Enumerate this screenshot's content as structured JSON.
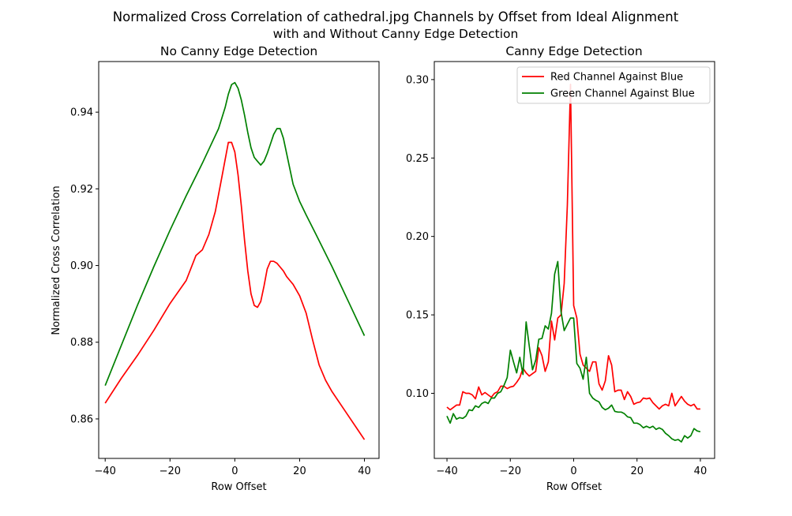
{
  "figure": {
    "title_line1": "Normalized Cross Correlation of cathedral.jpg Channels by Offset from Ideal Alignment",
    "title_line2": "with and Without Canny Edge Detection"
  },
  "colors": {
    "red": "#ff0000",
    "green": "#008000"
  },
  "chart_data": [
    {
      "type": "line",
      "title": "No Canny Edge Detection",
      "xlabel": "Row Offset",
      "ylabel": "Normalized Cross Correlation",
      "xlim": [
        -42,
        44.5
      ],
      "ylim": [
        0.8497,
        0.9532
      ],
      "xticks": [
        -40,
        -20,
        0,
        20,
        40
      ],
      "xtick_labels": [
        "−40",
        "−20",
        "0",
        "20",
        "40"
      ],
      "yticks": [
        0.86,
        0.88,
        0.9,
        0.92,
        0.94
      ],
      "ytick_labels": [
        "0.86",
        "0.88",
        "0.90",
        "0.92",
        "0.94"
      ],
      "legend": null,
      "series": [
        {
          "color": "#ff0000",
          "x": [
            -40,
            -35,
            -30,
            -25,
            -20,
            -15,
            -12,
            -10,
            -8,
            -6,
            -4,
            -2,
            -1,
            0,
            1,
            2,
            3,
            4,
            5,
            6,
            7,
            8,
            9,
            10,
            11,
            12,
            13,
            14,
            15,
            16,
            17,
            18,
            20,
            22,
            24,
            26,
            28,
            30,
            34,
            38,
            40
          ],
          "y": [
            0.8641,
            0.8706,
            0.8766,
            0.8831,
            0.8901,
            0.8961,
            0.9026,
            0.9041,
            0.9081,
            0.9141,
            0.9231,
            0.9321,
            0.9321,
            0.9296,
            0.9236,
            0.9156,
            0.9066,
            0.8986,
            0.8926,
            0.8896,
            0.8891,
            0.8906,
            0.8946,
            0.8991,
            0.9011,
            0.9011,
            0.9006,
            0.8996,
            0.8986,
            0.8971,
            0.8961,
            0.8951,
            0.8921,
            0.8876,
            0.8806,
            0.8741,
            0.8701,
            0.8671,
            0.8621,
            0.8571,
            0.8546
          ]
        },
        {
          "color": "#008000",
          "x": [
            -40,
            -35,
            -30,
            -25,
            -20,
            -15,
            -10,
            -5,
            -3,
            -2,
            -1,
            0,
            1,
            2,
            3,
            4,
            5,
            6,
            7,
            8,
            9,
            10,
            11,
            12,
            13,
            14,
            15,
            16,
            17,
            18,
            20,
            22,
            25,
            30,
            35,
            40
          ],
          "y": [
            0.8687,
            0.8792,
            0.8897,
            0.8997,
            0.9092,
            0.9182,
            0.9267,
            0.9357,
            0.9412,
            0.9447,
            0.9472,
            0.9477,
            0.9462,
            0.9432,
            0.9392,
            0.9347,
            0.9307,
            0.9282,
            0.9272,
            0.9262,
            0.9272,
            0.9292,
            0.9317,
            0.9342,
            0.9357,
            0.9357,
            0.9332,
            0.9292,
            0.9252,
            0.9212,
            0.9167,
            0.9132,
            0.9082,
            0.8997,
            0.8907,
            0.8817
          ]
        }
      ]
    },
    {
      "type": "line",
      "title": "Canny Edge Detection",
      "xlabel": "Row Offset",
      "ylabel": "",
      "xlim": [
        -44,
        44.5
      ],
      "ylim": [
        0.0585,
        0.3115
      ],
      "xticks": [
        -40,
        -20,
        0,
        20,
        40
      ],
      "xtick_labels": [
        "−40",
        "−20",
        "0",
        "20",
        "40"
      ],
      "yticks": [
        0.1,
        0.15,
        0.2,
        0.25,
        0.3
      ],
      "ytick_labels": [
        "0.10",
        "0.15",
        "0.20",
        "0.25",
        "0.30"
      ],
      "legend": {
        "position": "top-right"
      },
      "series": [
        {
          "name": "Red Channel Against Blue",
          "color": "#ff0000",
          "x": [
            -40,
            -39,
            -38,
            -37,
            -36,
            -35,
            -34,
            -33,
            -32,
            -31,
            -30,
            -29,
            -28,
            -27,
            -26,
            -25,
            -24,
            -23,
            -22,
            -21,
            -20,
            -19,
            -18,
            -17,
            -16,
            -15,
            -14,
            -13,
            -12,
            -11,
            -10,
            -9,
            -8,
            -7,
            -6,
            -5,
            -4,
            -3,
            -2,
            -1,
            0,
            1,
            2,
            3,
            4,
            5,
            6,
            7,
            8,
            9,
            10,
            11,
            12,
            13,
            14,
            15,
            16,
            17,
            18,
            19,
            20,
            21,
            22,
            23,
            24,
            25,
            26,
            27,
            28,
            29,
            30,
            31,
            32,
            33,
            34,
            35,
            36,
            37,
            38,
            39,
            40
          ],
          "y": [
            0.0912,
            0.0895,
            0.091,
            0.0925,
            0.0925,
            0.101,
            0.1,
            0.1,
            0.099,
            0.0965,
            0.104,
            0.099,
            0.1005,
            0.099,
            0.0975,
            0.1,
            0.101,
            0.1045,
            0.1045,
            0.103,
            0.104,
            0.1045,
            0.107,
            0.11,
            0.116,
            0.113,
            0.111,
            0.1125,
            0.114,
            0.129,
            0.124,
            0.114,
            0.12,
            0.146,
            0.134,
            0.148,
            0.15,
            0.17,
            0.22,
            0.297,
            0.156,
            0.148,
            0.125,
            0.118,
            0.116,
            0.114,
            0.12,
            0.12,
            0.106,
            0.102,
            0.108,
            0.124,
            0.118,
            0.101,
            0.102,
            0.102,
            0.096,
            0.101,
            0.098,
            0.093,
            0.094,
            0.0945,
            0.097,
            0.0965,
            0.097,
            0.094,
            0.092,
            0.09,
            0.092,
            0.093,
            0.092,
            0.1,
            0.092,
            0.095,
            0.098,
            0.095,
            0.093,
            0.092,
            0.093,
            0.09,
            0.09
          ]
        },
        {
          "name": "Green Channel Against Blue",
          "color": "#008000",
          "x": [
            -40,
            -39,
            -38,
            -37,
            -36,
            -35,
            -34,
            -33,
            -32,
            -31,
            -30,
            -29,
            -28,
            -27,
            -26,
            -25,
            -24,
            -23,
            -22,
            -21,
            -20,
            -19,
            -18,
            -17,
            -16,
            -15,
            -14,
            -13,
            -12,
            -11,
            -10,
            -9,
            -8,
            -7,
            -6,
            -5,
            -4,
            -3,
            -2,
            -1,
            0,
            1,
            2,
            3,
            4,
            5,
            6,
            7,
            8,
            9,
            10,
            11,
            12,
            13,
            14,
            15,
            16,
            17,
            18,
            19,
            20,
            21,
            22,
            23,
            24,
            25,
            26,
            27,
            28,
            29,
            30,
            31,
            32,
            33,
            34,
            35,
            36,
            37,
            38,
            39,
            40
          ],
          "y": [
            0.0855,
            0.081,
            0.087,
            0.0835,
            0.0845,
            0.084,
            0.0855,
            0.0895,
            0.089,
            0.092,
            0.091,
            0.0935,
            0.0945,
            0.0935,
            0.097,
            0.097,
            0.1,
            0.101,
            0.105,
            0.11,
            0.1275,
            0.12,
            0.113,
            0.123,
            0.112,
            0.1455,
            0.13,
            0.115,
            0.121,
            0.1345,
            0.135,
            0.143,
            0.141,
            0.151,
            0.176,
            0.184,
            0.152,
            0.14,
            0.144,
            0.148,
            0.148,
            0.119,
            0.116,
            0.109,
            0.123,
            0.1,
            0.097,
            0.0955,
            0.0945,
            0.091,
            0.0895,
            0.0905,
            0.0925,
            0.0885,
            0.088,
            0.088,
            0.087,
            0.085,
            0.0845,
            0.081,
            0.081,
            0.08,
            0.078,
            0.079,
            0.078,
            0.079,
            0.077,
            0.078,
            0.077,
            0.0745,
            0.073,
            0.071,
            0.07,
            0.0705,
            0.069,
            0.073,
            0.0715,
            0.073,
            0.0775,
            0.076,
            0.0755
          ]
        }
      ]
    }
  ]
}
